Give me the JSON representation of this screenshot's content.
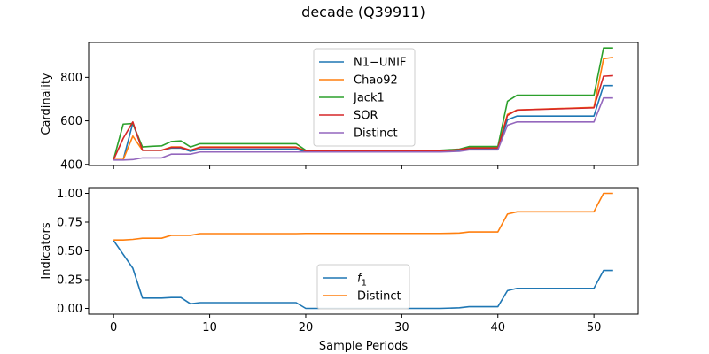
{
  "figure": {
    "title": "decade (Q39911)"
  },
  "chart_data": [
    {
      "type": "line",
      "ylabel": "Cardinality",
      "xlabel": "",
      "xlim": [
        -2.6,
        54.6
      ],
      "ylim": [
        395,
        960
      ],
      "yticks": [
        400,
        600,
        800
      ],
      "xticks": [
        0,
        10,
        20,
        30,
        40,
        50
      ],
      "show_xtick_labels": false,
      "legend_position": "upper-center",
      "series": [
        {
          "name": "N1−UNIF",
          "color": "#1f77b4",
          "x": [
            0,
            1,
            2,
            3,
            4,
            5,
            6,
            7,
            8,
            9,
            19,
            20,
            34,
            36,
            37,
            40,
            41,
            42,
            50,
            51,
            52
          ],
          "y": [
            422,
            422,
            590,
            465,
            465,
            465,
            475,
            475,
            460,
            470,
            470,
            458,
            458,
            465,
            470,
            470,
            605,
            622,
            622,
            762,
            762
          ]
        },
        {
          "name": "Chao92",
          "color": "#ff7f0e",
          "x": [
            0,
            1,
            2,
            3,
            4,
            5,
            6,
            7,
            8,
            9,
            19,
            20,
            34,
            36,
            37,
            40,
            41,
            42,
            50,
            51,
            52
          ],
          "y": [
            422,
            422,
            530,
            465,
            465,
            465,
            480,
            480,
            465,
            480,
            480,
            462,
            462,
            468,
            478,
            478,
            630,
            650,
            662,
            885,
            892
          ]
        },
        {
          "name": "Jack1",
          "color": "#2ca02c",
          "x": [
            0,
            1,
            2,
            3,
            4,
            5,
            6,
            7,
            8,
            9,
            19,
            20,
            34,
            36,
            37,
            40,
            41,
            42,
            50,
            51,
            52
          ],
          "y": [
            422,
            585,
            588,
            480,
            483,
            485,
            505,
            508,
            480,
            495,
            495,
            465,
            465,
            470,
            482,
            482,
            690,
            718,
            718,
            935,
            935
          ]
        },
        {
          "name": "SOR",
          "color": "#d62728",
          "x": [
            0,
            1,
            2,
            3,
            4,
            5,
            6,
            7,
            8,
            9,
            19,
            20,
            34,
            36,
            37,
            40,
            41,
            42,
            50,
            51,
            52
          ],
          "y": [
            422,
            520,
            595,
            465,
            465,
            465,
            478,
            478,
            465,
            478,
            478,
            462,
            462,
            468,
            475,
            475,
            625,
            650,
            660,
            805,
            808
          ]
        },
        {
          "name": "Distinct",
          "color": "#9467bd",
          "x": [
            0,
            1,
            2,
            3,
            4,
            5,
            6,
            7,
            8,
            9,
            19,
            20,
            34,
            36,
            37,
            40,
            41,
            42,
            50,
            51,
            52
          ],
          "y": [
            420,
            420,
            422,
            430,
            430,
            430,
            447,
            447,
            447,
            457,
            457,
            457,
            457,
            460,
            467,
            467,
            580,
            595,
            595,
            705,
            705
          ]
        }
      ]
    },
    {
      "type": "line",
      "ylabel": "Indicators",
      "xlabel": "Sample Periods",
      "xlim": [
        -2.6,
        54.6
      ],
      "ylim": [
        -0.05,
        1.05
      ],
      "yticks": [
        0.0,
        0.25,
        0.5,
        0.75,
        1.0
      ],
      "ytick_labels": [
        "0.00",
        "0.25",
        "0.50",
        "0.75",
        "1.00"
      ],
      "xticks": [
        0,
        10,
        20,
        30,
        40,
        50
      ],
      "show_xtick_labels": true,
      "legend_position": "lower-center",
      "series": [
        {
          "name": "f",
          "name_sub": "1",
          "color": "#1f77b4",
          "x": [
            0,
            1,
            2,
            3,
            4,
            5,
            6,
            7,
            8,
            9,
            19,
            20,
            34,
            36,
            37,
            40,
            41,
            42,
            50,
            51,
            52
          ],
          "y": [
            0.59,
            0.47,
            0.35,
            0.09,
            0.09,
            0.09,
            0.095,
            0.095,
            0.04,
            0.05,
            0.05,
            0.0,
            0.0,
            0.005,
            0.015,
            0.015,
            0.155,
            0.175,
            0.175,
            0.33,
            0.33
          ]
        },
        {
          "name": "Distinct",
          "color": "#ff7f0e",
          "x": [
            0,
            1,
            2,
            3,
            4,
            5,
            6,
            7,
            8,
            9,
            19,
            20,
            34,
            36,
            37,
            40,
            41,
            42,
            50,
            51,
            52
          ],
          "y": [
            0.595,
            0.595,
            0.6,
            0.61,
            0.61,
            0.61,
            0.635,
            0.635,
            0.635,
            0.65,
            0.65,
            0.652,
            0.652,
            0.655,
            0.665,
            0.665,
            0.82,
            0.84,
            0.84,
            1.0,
            1.0
          ]
        }
      ]
    }
  ]
}
